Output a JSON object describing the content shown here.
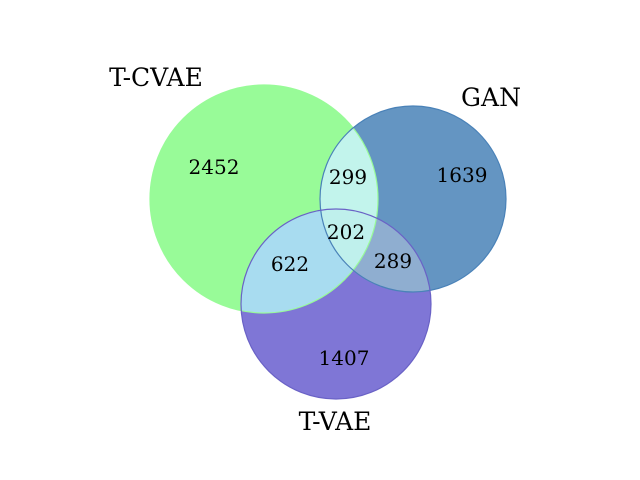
{
  "venn": {
    "sets": [
      {
        "id": "A",
        "name": "T-CVAE",
        "color": "#98FB98"
      },
      {
        "id": "B",
        "name": "GAN",
        "color": "#6495C2"
      },
      {
        "id": "C",
        "name": "T-VAE",
        "color": "#7F76D6"
      }
    ],
    "regions": {
      "A_only": "2452",
      "B_only": "1639",
      "C_only": "1407",
      "AB": "299",
      "AC": "622",
      "BC": "289",
      "ABC": "202"
    },
    "overlap_colors": {
      "AB": "#C2F4EC",
      "AC": "#A8DCF0",
      "BC": "#8FAED0",
      "ABC": "#BFF0EC"
    },
    "outline_colors": {
      "A": "#98FB98",
      "B": "#4A82B8",
      "C": "#6A62C6"
    }
  }
}
